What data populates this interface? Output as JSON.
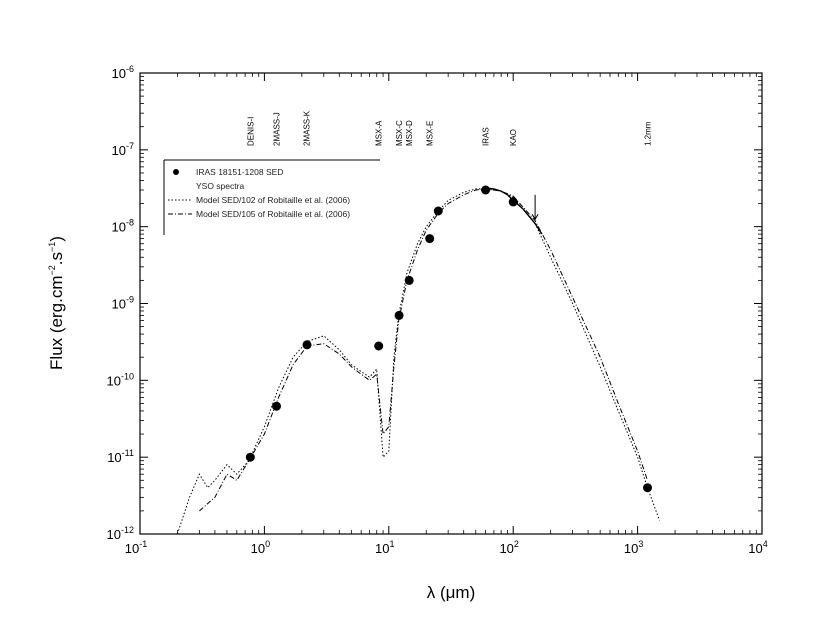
{
  "chart_data": {
    "type": "scatter",
    "title": "",
    "xlabel": "λ (μm)",
    "ylabel_parts": {
      "prefix": "Flux (erg.cm",
      "exp1": "−2",
      "mid": ".s",
      "exp2": "−1",
      "suffix": ")"
    },
    "x_scale": "log",
    "y_scale": "log",
    "xlim": [
      0.1,
      10000
    ],
    "ylim": [
      1e-12,
      1e-06
    ],
    "x_ticks": [
      {
        "value": 0.1,
        "base": "10",
        "exp": "-1"
      },
      {
        "value": 1,
        "base": "10",
        "exp": "0"
      },
      {
        "value": 10,
        "base": "10",
        "exp": "1"
      },
      {
        "value": 100,
        "base": "10",
        "exp": "2"
      },
      {
        "value": 1000,
        "base": "10",
        "exp": "3"
      },
      {
        "value": 10000,
        "base": "10",
        "exp": "4"
      }
    ],
    "y_ticks": [
      {
        "value": 1e-12,
        "base": "10",
        "exp": "-12"
      },
      {
        "value": 1e-11,
        "base": "10",
        "exp": "-11"
      },
      {
        "value": 1e-10,
        "base": "10",
        "exp": "-10"
      },
      {
        "value": 1e-09,
        "base": "10",
        "exp": "-9"
      },
      {
        "value": 1e-08,
        "base": "10",
        "exp": "-8"
      },
      {
        "value": 1e-07,
        "base": "10",
        "exp": "-7"
      },
      {
        "value": 1e-06,
        "base": "10",
        "exp": "-6"
      }
    ],
    "grid": false,
    "legend_placement": "upper-left",
    "legend": [
      {
        "label": "IRAS 18151-1208 SED",
        "marker": "filled-circle"
      },
      {
        "label": "YSO spectra",
        "marker": "none"
      },
      {
        "label": "Model SED/102 of Robitaille et al. (2006)",
        "marker": "dotted-line"
      },
      {
        "label": "Model SED/105 of Robitaille et al. (2006)",
        "marker": "dash-dot-line"
      }
    ],
    "band_labels": [
      {
        "x": 0.77,
        "text": "DENIS-I"
      },
      {
        "x": 1.25,
        "text": "2MASS-J"
      },
      {
        "x": 2.17,
        "text": "2MASS-K"
      },
      {
        "x": 8.3,
        "text": "MSX-A"
      },
      {
        "x": 12.1,
        "text": "MSX-C"
      },
      {
        "x": 14.6,
        "text": "MSX-D"
      },
      {
        "x": 21.3,
        "text": "MSX-E"
      },
      {
        "x": 60,
        "text": "IRAS"
      },
      {
        "x": 100,
        "text": "KAO"
      },
      {
        "x": 1200,
        "text": "1.2mm"
      }
    ],
    "series": [
      {
        "name": "IRAS 18151-1208 SED",
        "style": "points",
        "x": [
          0.77,
          1.25,
          2.2,
          8.3,
          12.1,
          14.6,
          21.3,
          25,
          60,
          100,
          1200
        ],
        "y": [
          1e-11,
          4.6e-11,
          2.9e-10,
          2.8e-10,
          7e-10,
          2e-09,
          7e-09,
          1.6e-08,
          3e-08,
          2.1e-08,
          4e-12
        ]
      },
      {
        "name": "YSO spectra",
        "style": "solid",
        "x": [
          60,
          70,
          80,
          90,
          100,
          120,
          150,
          170
        ],
        "y": [
          3.2e-08,
          3.1e-08,
          2.9e-08,
          2.6e-08,
          2.2e-08,
          1.7e-08,
          1.1e-08,
          8e-09
        ]
      },
      {
        "name": "Model SED/102 of Robitaille et al. (2006)",
        "style": "dotted",
        "x": [
          0.2,
          0.25,
          0.3,
          0.35,
          0.4,
          0.5,
          0.6,
          0.75,
          1.0,
          1.3,
          1.7,
          2.2,
          3.0,
          4.0,
          5.0,
          6.0,
          7.0,
          8.0,
          9.0,
          10.0,
          11.0,
          12.0,
          14.0,
          17.0,
          20.0,
          25.0,
          30.0,
          40.0,
          50.0,
          60.0,
          80.0,
          100.0,
          150.0,
          200.0,
          300.0,
          500.0,
          700.0,
          1000.0,
          1200.0,
          1500.0
        ],
        "y": [
          1e-12,
          3e-12,
          6e-12,
          4e-12,
          5e-12,
          8e-12,
          6e-12,
          9e-12,
          2.5e-11,
          8e-11,
          2e-10,
          3.2e-10,
          3.8e-10,
          2.5e-10,
          1.6e-10,
          1.3e-10,
          1.1e-10,
          1.4e-10,
          1e-11,
          1.2e-11,
          2e-10,
          7e-10,
          2.5e-09,
          6e-09,
          1e-08,
          1.6e-08,
          2.2e-08,
          2.8e-08,
          3.1e-08,
          3.1e-08,
          2.9e-08,
          2.4e-08,
          1.1e-08,
          4e-09,
          1e-09,
          1.5e-10,
          4e-11,
          1e-11,
          4e-12,
          1.5e-12
        ]
      },
      {
        "name": "Model SED/105 of Robitaille et al. (2006)",
        "style": "dashdot",
        "x": [
          0.3,
          0.4,
          0.5,
          0.6,
          0.75,
          1.0,
          1.3,
          1.7,
          2.2,
          3.0,
          4.0,
          5.0,
          6.0,
          7.0,
          8.0,
          9.0,
          10.0,
          11.0,
          12.0,
          14.0,
          17.0,
          20.0,
          25.0,
          30.0,
          40.0,
          50.0,
          60.0,
          80.0,
          100.0,
          150.0,
          200.0,
          300.0,
          500.0,
          700.0,
          1000.0,
          1200.0
        ],
        "y": [
          2e-12,
          3e-12,
          6e-12,
          5e-12,
          9e-12,
          2e-11,
          6e-11,
          1.6e-10,
          2.8e-10,
          3e-10,
          2.2e-10,
          1.5e-10,
          1.2e-10,
          1e-10,
          1.2e-10,
          2e-11,
          2.5e-11,
          1.5e-10,
          6e-10,
          2e-09,
          5e-09,
          9e-09,
          1.5e-08,
          2e-08,
          2.6e-08,
          3e-08,
          3.1e-08,
          2.9e-08,
          2.5e-08,
          1.2e-08,
          5e-09,
          1.2e-09,
          2e-10,
          5e-11,
          1.2e-11,
          5e-12
        ]
      }
    ]
  }
}
